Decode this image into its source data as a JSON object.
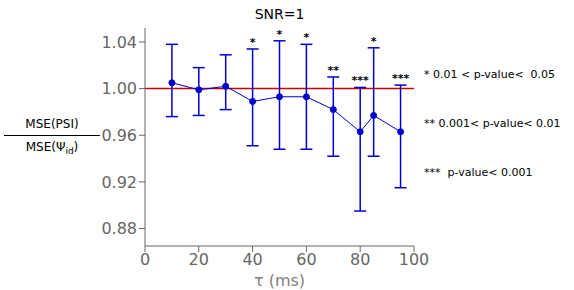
{
  "chart_data": {
    "type": "line",
    "title": "SNR=1",
    "xlabel": "τ (ms)",
    "ylabel": {
      "numerator": "MSE(PSI)",
      "denominator": [
        "MSE(Ψ",
        "id",
        ")"
      ]
    },
    "x": [
      10,
      20,
      30,
      40,
      50,
      60,
      70,
      80,
      85,
      95
    ],
    "values": [
      1.005,
      0.999,
      1.002,
      0.989,
      0.993,
      0.993,
      0.982,
      0.963,
      0.977,
      0.963
    ],
    "yerr_upper": [
      0.033,
      0.019,
      0.027,
      0.045,
      0.048,
      0.045,
      0.028,
      0.038,
      0.058,
      0.04
    ],
    "yerr_lower": [
      0.029,
      0.022,
      0.02,
      0.038,
      0.045,
      0.045,
      0.04,
      0.068,
      0.035,
      0.048
    ],
    "point_labels": [
      null,
      null,
      null,
      "*",
      "*",
      "*",
      "**",
      "***",
      "*",
      "***"
    ],
    "color": "#0000cc",
    "marker": "circle",
    "line_style": "solid",
    "reference_line": {
      "y": 1.0,
      "color": "#cc0000"
    },
    "xlim": [
      0,
      100
    ],
    "xticks": [
      0,
      20,
      40,
      60,
      80,
      100
    ],
    "ylim": [
      0.865,
      1.052
    ],
    "yticks": [
      0.88,
      0.92,
      0.96,
      {
        "value": 1.0,
        "label": "1.00"
      },
      1.04
    ],
    "annotations": [
      "* 0.01 < p-value<  0.05",
      "** 0.001< p-value< 0.01",
      "***  p-value< 0.001"
    ],
    "grid": false
  }
}
